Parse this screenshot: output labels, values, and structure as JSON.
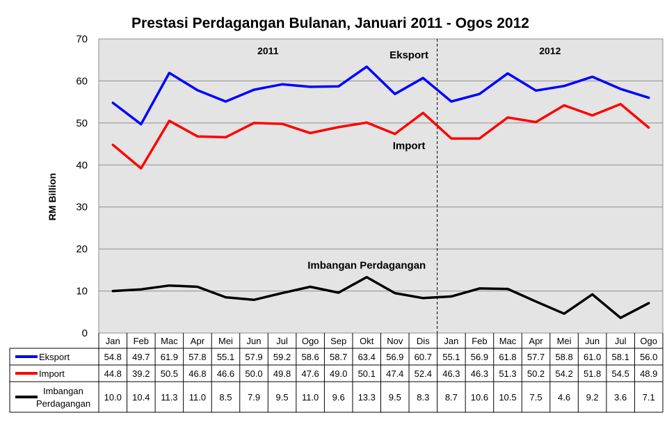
{
  "chart_data": {
    "type": "line",
    "title": "Prestasi Perdagangan Bulanan, Januari 2011 - Ogos 2012",
    "ylabel": "RM Billion",
    "xlabel": "",
    "ylim": [
      0,
      70
    ],
    "yticks": [
      0,
      10,
      20,
      30,
      40,
      50,
      60,
      70
    ],
    "grid": true,
    "legend": "table-below",
    "period_labels": [
      {
        "label": "2011",
        "start_index": 0,
        "end_index": 11
      },
      {
        "label": "2012",
        "start_index": 12,
        "end_index": 19
      }
    ],
    "divider_after_index": 11,
    "categories": [
      "Jan",
      "Feb",
      "Mac",
      "Apr",
      "Mei",
      "Jun",
      "Jul",
      "Ogo",
      "Sep",
      "Okt",
      "Nov",
      "Dis",
      "Jan",
      "Feb",
      "Mac",
      "Apr",
      "Mei",
      "Jun",
      "Jul",
      "Ogo"
    ],
    "series": [
      {
        "name": "Eksport",
        "chart_label": "Eksport",
        "color": "#0000ff",
        "values": [
          54.8,
          49.7,
          61.9,
          57.8,
          55.1,
          57.9,
          59.2,
          58.6,
          58.7,
          63.4,
          56.9,
          60.7,
          55.1,
          56.9,
          61.8,
          57.7,
          58.8,
          61.0,
          58.1,
          56.0
        ],
        "display_values": [
          "54.8",
          "49.7",
          "61.9",
          "57.8",
          "55.1",
          "57.9",
          "59.2",
          "58.6",
          "58.7",
          "63.4",
          "56.9",
          "60.7",
          "55.1",
          "56.9",
          "61.8",
          "57.7",
          "58.8",
          "61.0",
          "58.1",
          "56.0"
        ]
      },
      {
        "name": "Import",
        "chart_label": "Import",
        "color": "#ff0000",
        "values": [
          44.8,
          39.2,
          50.5,
          46.8,
          46.6,
          50.0,
          49.8,
          47.6,
          49.0,
          50.1,
          47.4,
          52.4,
          46.3,
          46.3,
          51.3,
          50.2,
          54.2,
          51.8,
          54.5,
          48.9
        ],
        "display_values": [
          "44.8",
          "39.2",
          "50.5",
          "46.8",
          "46.6",
          "50.0",
          "49.8",
          "47.6",
          "49.0",
          "50.1",
          "47.4",
          "52.4",
          "46.3",
          "46.3",
          "51.3",
          "50.2",
          "54.2",
          "51.8",
          "54.5",
          "48.9"
        ]
      },
      {
        "name": "Imbangan Perdagangan",
        "legend_lines": [
          "Imbangan",
          "Perdagangan"
        ],
        "chart_label": "Imbangan Perdagangan",
        "color": "#000000",
        "values": [
          10.0,
          10.4,
          11.3,
          11.0,
          8.5,
          7.9,
          9.5,
          11.0,
          9.6,
          13.3,
          9.5,
          8.3,
          8.7,
          10.6,
          10.5,
          7.5,
          4.6,
          9.2,
          3.6,
          7.1
        ],
        "display_values": [
          "10.0",
          "10.4",
          "11.3",
          "11.0",
          "8.5",
          "7.9",
          "9.5",
          "11.0",
          "9.6",
          "13.3",
          "9.5",
          "8.3",
          "8.7",
          "10.6",
          "10.5",
          "7.5",
          "4.6",
          "9.2",
          "3.6",
          "7.1"
        ]
      }
    ]
  }
}
